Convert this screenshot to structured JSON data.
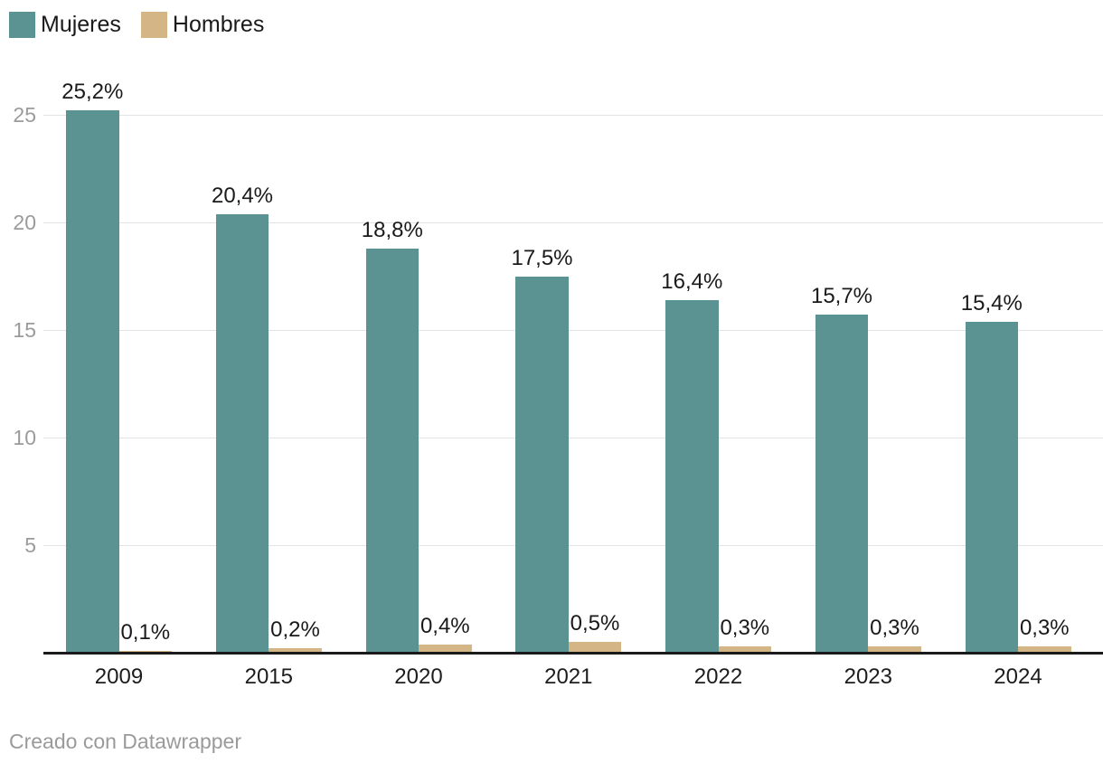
{
  "legend": {
    "items": [
      {
        "id": "mujeres",
        "label": "Mujeres",
        "color": "#5b9392"
      },
      {
        "id": "hombres",
        "label": "Hombres",
        "color": "#d3b586"
      }
    ]
  },
  "chart_data": {
    "type": "bar",
    "title": "",
    "categories": [
      "2009",
      "2015",
      "2020",
      "2021",
      "2022",
      "2023",
      "2024"
    ],
    "series": [
      {
        "name": "Mujeres",
        "color": "#5b9392",
        "values": [
          25.2,
          20.4,
          18.8,
          17.5,
          16.4,
          15.7,
          15.4
        ],
        "labels": [
          "25,2%",
          "20,4%",
          "18,8%",
          "17,5%",
          "16,4%",
          "15,7%",
          "15,4%"
        ]
      },
      {
        "name": "Hombres",
        "color": "#d3b586",
        "values": [
          0.1,
          0.2,
          0.4,
          0.5,
          0.3,
          0.3,
          0.3
        ],
        "labels": [
          "0,1%",
          "0,2%",
          "0,4%",
          "0,5%",
          "0,3%",
          "0,3%",
          "0,3%"
        ]
      }
    ],
    "y_axis": {
      "ticks": [
        5,
        10,
        15,
        20,
        25
      ],
      "ylim": [
        0,
        25.2
      ],
      "grid": true,
      "tick_color": "#9b9b9b",
      "grid_color": "#e3e3e3"
    },
    "x_axis": {
      "baseline_color": "#1a1a1a",
      "label_color": "#1d1d1d"
    },
    "value_label_color": "#1a1a1a",
    "legend_position": "top-left",
    "grid": "horizontal-only"
  },
  "footer": {
    "credit": "Creado con Datawrapper"
  }
}
